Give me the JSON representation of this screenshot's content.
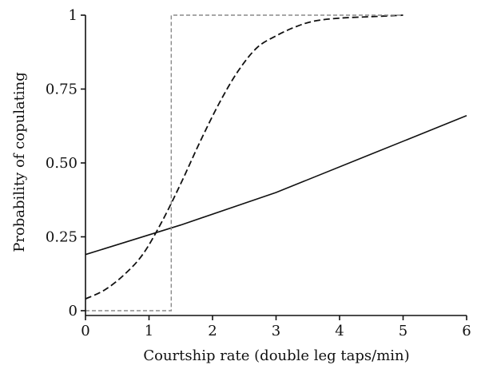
{
  "chart_data": {
    "type": "line",
    "title": "",
    "xlabel": "Courtship rate (double leg taps/min)",
    "ylabel": "Probability of copulating",
    "xlim": [
      0,
      6
    ],
    "ylim": [
      0,
      1
    ],
    "x_ticks": [
      "0",
      "1",
      "2",
      "3",
      "4",
      "5",
      "6"
    ],
    "y_ticks": [
      "0",
      "0.25",
      "0.50",
      "0.75",
      "1"
    ],
    "grid": false,
    "legend": "none",
    "series": [
      {
        "style": "solid",
        "color": "#111111",
        "x": [
          0,
          1.5,
          3,
          4.5,
          6
        ],
        "y": [
          0.19,
          0.29,
          0.4,
          0.53,
          0.66
        ]
      },
      {
        "style": "dashed",
        "color": "#111111",
        "x": [
          0,
          0.3,
          0.6,
          0.9,
          1.2,
          1.5,
          1.8,
          2.1,
          2.4,
          2.7,
          3.0,
          3.3,
          3.6,
          4.0,
          4.5,
          5.0
        ],
        "y": [
          0.04,
          0.07,
          0.12,
          0.19,
          0.3,
          0.43,
          0.57,
          0.7,
          0.81,
          0.89,
          0.93,
          0.96,
          0.98,
          0.99,
          0.995,
          1.0
        ]
      },
      {
        "style": "dashed-grey",
        "color": "#8a8a8a",
        "x": [
          0,
          1.35,
          1.35,
          5.0
        ],
        "y": [
          0,
          0,
          1,
          1
        ]
      }
    ]
  }
}
